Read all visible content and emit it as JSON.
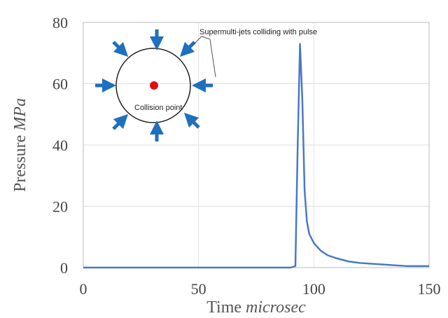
{
  "chart_data": {
    "type": "line",
    "xlabel": "Time",
    "xlabel_unit": "microsec",
    "ylabel": "Pressure",
    "ylabel_unit": "MPa",
    "annotations": [
      "Supermulti-jets colliding with pulse",
      "Collision point"
    ],
    "x": [
      0,
      90,
      92,
      93,
      94,
      95,
      96,
      97,
      98,
      100,
      103,
      106,
      110,
      115,
      120,
      130,
      140,
      150
    ],
    "series": [
      {
        "name": "Pressure",
        "color": "#4a78c8",
        "values": [
          0,
          0,
          0.5,
          40,
          73,
          55,
          25,
          15,
          11,
          8,
          5.5,
          4,
          3,
          2,
          1.5,
          1,
          0.5,
          0.5
        ]
      }
    ],
    "xlim": [
      0,
      150
    ],
    "xticks": [
      0,
      50,
      100,
      150
    ],
    "ylim": [
      0,
      80
    ],
    "yticks": [
      0,
      20,
      40,
      60,
      80
    ],
    "grid": true
  }
}
